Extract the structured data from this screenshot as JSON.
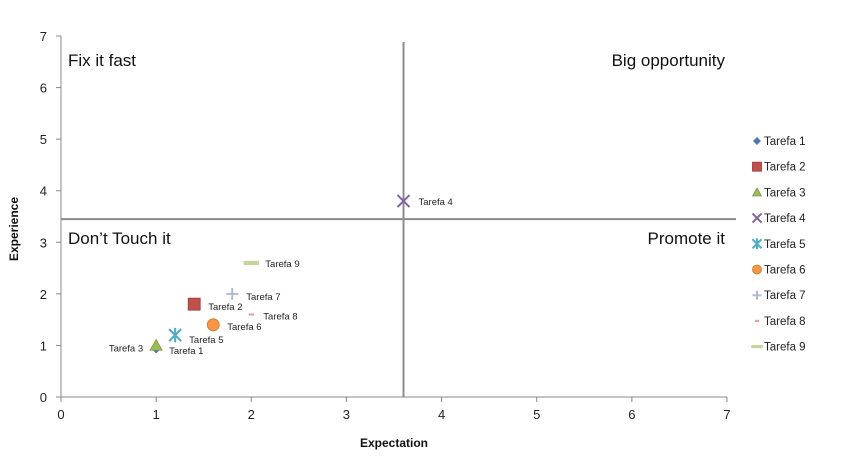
{
  "chart_data": {
    "type": "scatter",
    "title": "",
    "xlabel": "Expectation",
    "ylabel": "Experience",
    "xlim": [
      0,
      7
    ],
    "ylim": [
      0,
      7
    ],
    "xticks": [
      "0",
      "1",
      "2",
      "3",
      "4",
      "5",
      "6",
      "7"
    ],
    "yticks": [
      "0",
      "1",
      "2",
      "3",
      "4",
      "5",
      "6",
      "7"
    ],
    "grid": false,
    "legend_position": "right",
    "reference_lines": {
      "x": 3.6,
      "y": 3.45
    },
    "quadrant_labels": {
      "top_left": "Fix it fast",
      "top_right": "Big opportunity",
      "bottom_left": "Don’t Touch it",
      "bottom_right": "Promote it"
    },
    "series": [
      {
        "name": "Tarefa 1",
        "x": 1.0,
        "y": 0.95,
        "marker": "diamond",
        "color": "#4a78b8"
      },
      {
        "name": "Tarefa 2",
        "x": 1.4,
        "y": 1.8,
        "marker": "square",
        "color": "#c0504d"
      },
      {
        "name": "Tarefa 3",
        "x": 1.0,
        "y": 1.0,
        "marker": "triangle",
        "color": "#9bbb59"
      },
      {
        "name": "Tarefa 4",
        "x": 3.6,
        "y": 3.8,
        "marker": "x",
        "color": "#8064a2"
      },
      {
        "name": "Tarefa 5",
        "x": 1.2,
        "y": 1.2,
        "marker": "star",
        "color": "#4bacc6"
      },
      {
        "name": "Tarefa 6",
        "x": 1.6,
        "y": 1.4,
        "marker": "circle",
        "color": "#f79646"
      },
      {
        "name": "Tarefa 7",
        "x": 1.8,
        "y": 2.0,
        "marker": "plus",
        "color": "#b4b8d8"
      },
      {
        "name": "Tarefa 8",
        "x": 2.0,
        "y": 1.6,
        "marker": "dash",
        "color": "#e6a0a0"
      },
      {
        "name": "Tarefa 9",
        "x": 2.0,
        "y": 2.6,
        "marker": "bar",
        "color": "#c3d69b"
      }
    ]
  }
}
